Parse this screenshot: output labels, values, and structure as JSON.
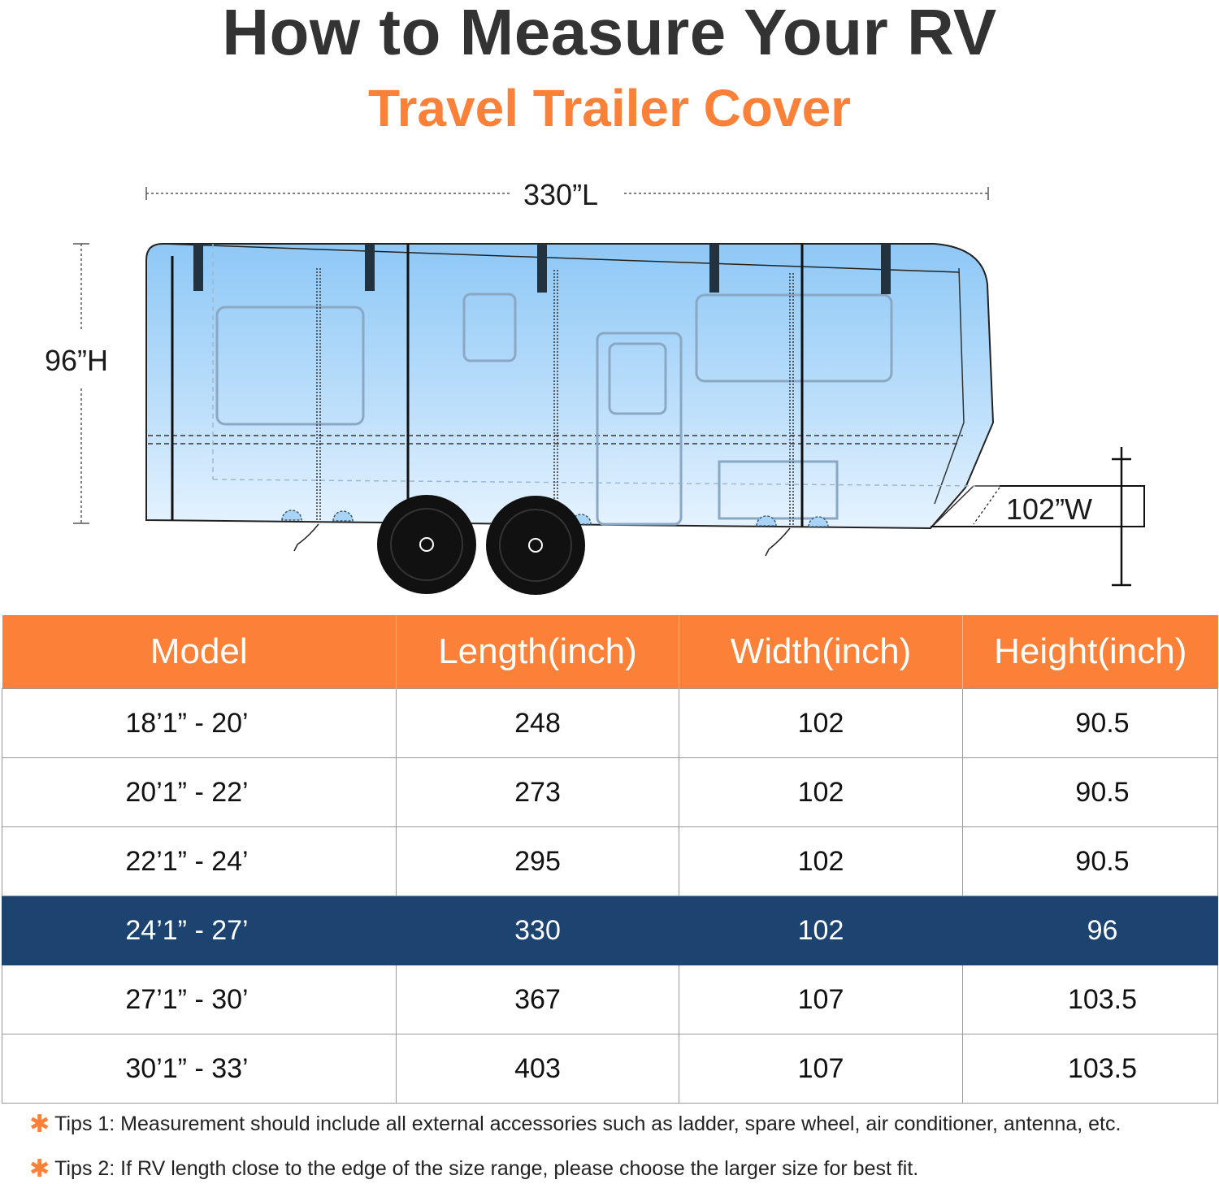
{
  "header": {
    "title": "How to Measure Your RV",
    "subtitle": "Travel Trailer Cover"
  },
  "diagram": {
    "length_label": "330”L",
    "height_label": "96”H",
    "width_label": "102”W"
  },
  "colors": {
    "accent": "#FC8138",
    "highlight_row": "#1D4470",
    "title": "#333333"
  },
  "table": {
    "headers": [
      "Model",
      "Length(inch)",
      "Width(inch)",
      "Height(inch)"
    ],
    "rows": [
      [
        "18’1” - 20’",
        "248",
        "102",
        "90.5"
      ],
      [
        "20’1” - 22’",
        "273",
        "102",
        "90.5"
      ],
      [
        "22’1” - 24’",
        "295",
        "102",
        "90.5"
      ],
      [
        "24’1” - 27’",
        "330",
        "102",
        "96"
      ],
      [
        "27’1” - 30’",
        "367",
        "107",
        "103.5"
      ],
      [
        "30’1” - 33’",
        "403",
        "107",
        "103.5"
      ]
    ],
    "highlighted_row": 3
  },
  "tips": {
    "icon": "star-icon",
    "items": [
      "Tips 1: Measurement should include all external accessories such as ladder, spare wheel, air conditioner, antenna, etc.",
      "Tips 2: If RV length close to the edge of the size range, please choose the larger size for best fit."
    ]
  }
}
